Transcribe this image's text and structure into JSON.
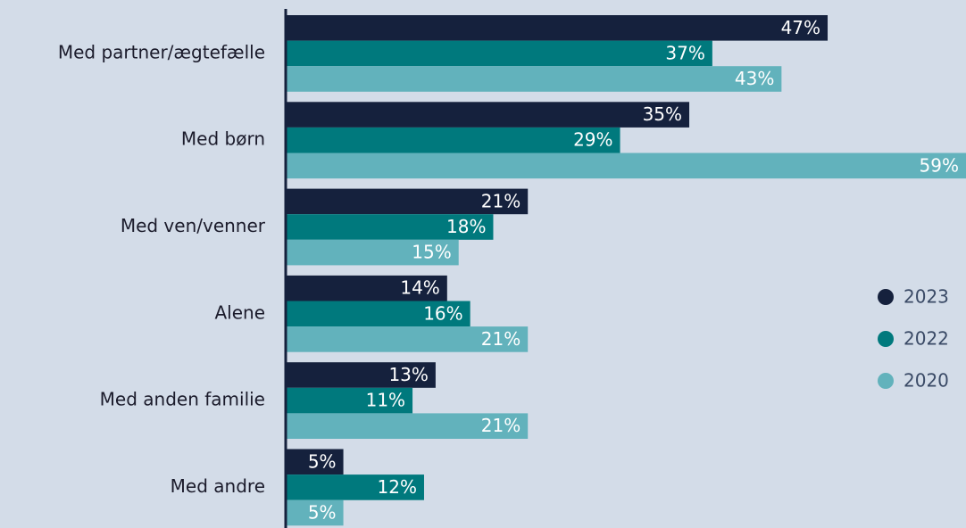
{
  "chart_data": {
    "type": "bar",
    "orientation": "horizontal",
    "categories": [
      "Med partner/ægtefælle",
      "Med børn",
      "Med ven/venner",
      "Alene",
      "Med anden familie",
      "Med andre"
    ],
    "series": [
      {
        "name": "2023",
        "color": "#15213d",
        "values": [
          47,
          35,
          21,
          14,
          13,
          5
        ],
        "value_labels": [
          "47%",
          "35%",
          "21%",
          "14%",
          "13%",
          "5%"
        ]
      },
      {
        "name": "2022",
        "color": "#00797d",
        "values": [
          37,
          29,
          18,
          16,
          11,
          12
        ],
        "value_labels": [
          "37%",
          "29%",
          "18%",
          "16%",
          "11%",
          "12%"
        ]
      },
      {
        "name": "2020",
        "color": "#62b2bc",
        "values": [
          43,
          59,
          15,
          21,
          21,
          5
        ],
        "value_labels": [
          "43%",
          "59%",
          "15%",
          "21%",
          "21%",
          "5%"
        ]
      }
    ],
    "legend": "right"
  }
}
